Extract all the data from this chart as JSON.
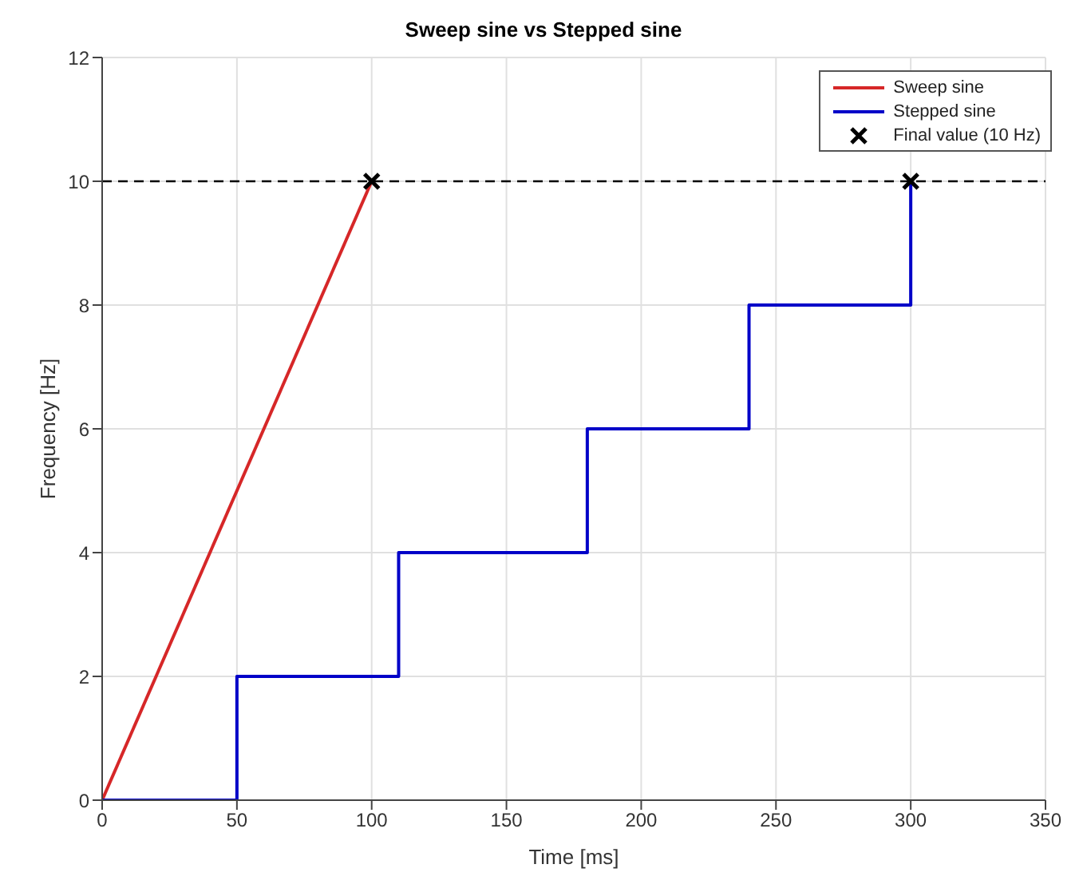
{
  "chart_data": {
    "type": "line",
    "title": "Sweep sine vs Stepped sine",
    "xlabel": "Time [ms]",
    "ylabel": "Frequency [Hz]",
    "xlim": [
      0,
      350
    ],
    "xticks": [
      0,
      50,
      100,
      150,
      200,
      250,
      300,
      350
    ],
    "ylim": [
      0,
      12
    ],
    "yticks": [
      0,
      2,
      4,
      6,
      8,
      10,
      12
    ],
    "grid": true,
    "legend": "top right",
    "series": [
      {
        "name": "Sweep sine",
        "color": "#d62728",
        "x": [
          0,
          100
        ],
        "values": [
          0,
          10
        ]
      },
      {
        "name": "Stepped sine",
        "type": "step",
        "color": "#0000c8",
        "x": [
          0,
          50,
          110,
          180,
          240,
          300
        ],
        "values": [
          0,
          2,
          4,
          6,
          8,
          10
        ]
      },
      {
        "name": "Final value (10 Hz)",
        "type": "scatter",
        "marker": "cross",
        "color": "#000000",
        "x": [
          100,
          300
        ],
        "values": [
          10,
          10
        ]
      }
    ],
    "ref_lines": [
      {
        "axis": "y",
        "value": 10,
        "color": "#000000",
        "line_style": "dashed"
      }
    ]
  }
}
